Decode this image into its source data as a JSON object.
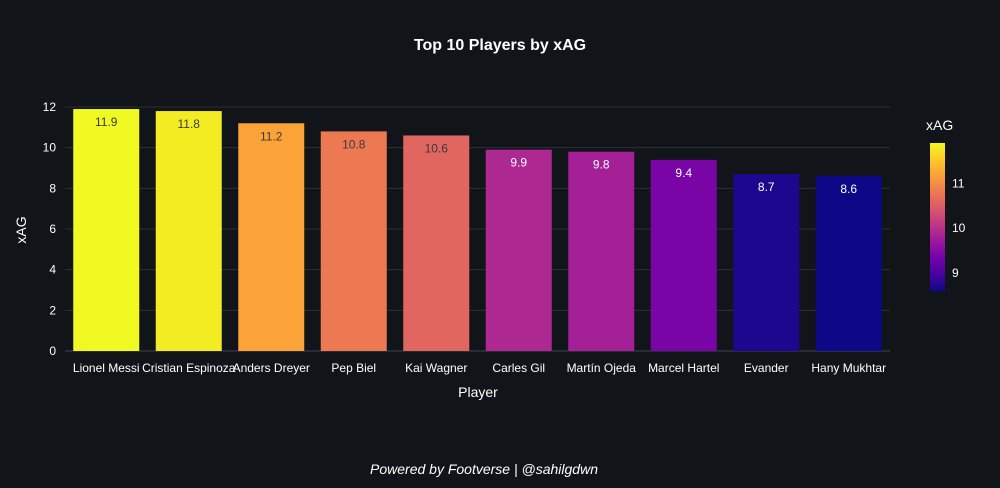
{
  "chart_data": {
    "type": "bar",
    "title": "Top 10 Players by xAG",
    "xlabel": "Player",
    "ylabel": "xAG",
    "ylim": [
      0,
      12.5
    ],
    "yticks": [
      0,
      2,
      4,
      6,
      8,
      10,
      12
    ],
    "grid": true,
    "categories": [
      "Lionel Messi",
      "Cristian Espinoza",
      "Anders Dreyer",
      "Pep Biel",
      "Kai Wagner",
      "Carles Gil",
      "Martín Ojeda",
      "Marcel Hartel",
      "Evander",
      "Hany Mukhtar"
    ],
    "values": [
      11.9,
      11.8,
      11.2,
      10.8,
      10.6,
      9.9,
      9.8,
      9.4,
      8.7,
      8.6
    ],
    "data_labels": [
      "11.9",
      "11.8",
      "11.2",
      "10.8",
      "10.6",
      "9.9",
      "9.8",
      "9.4",
      "8.7",
      "8.6"
    ],
    "colorscale": "Plasma",
    "colorbar": {
      "title": "xAG",
      "range": [
        8.6,
        11.9
      ],
      "ticks": [
        9,
        10,
        11
      ]
    }
  },
  "footer": "Powered by Footverse | @sahilgdwn"
}
